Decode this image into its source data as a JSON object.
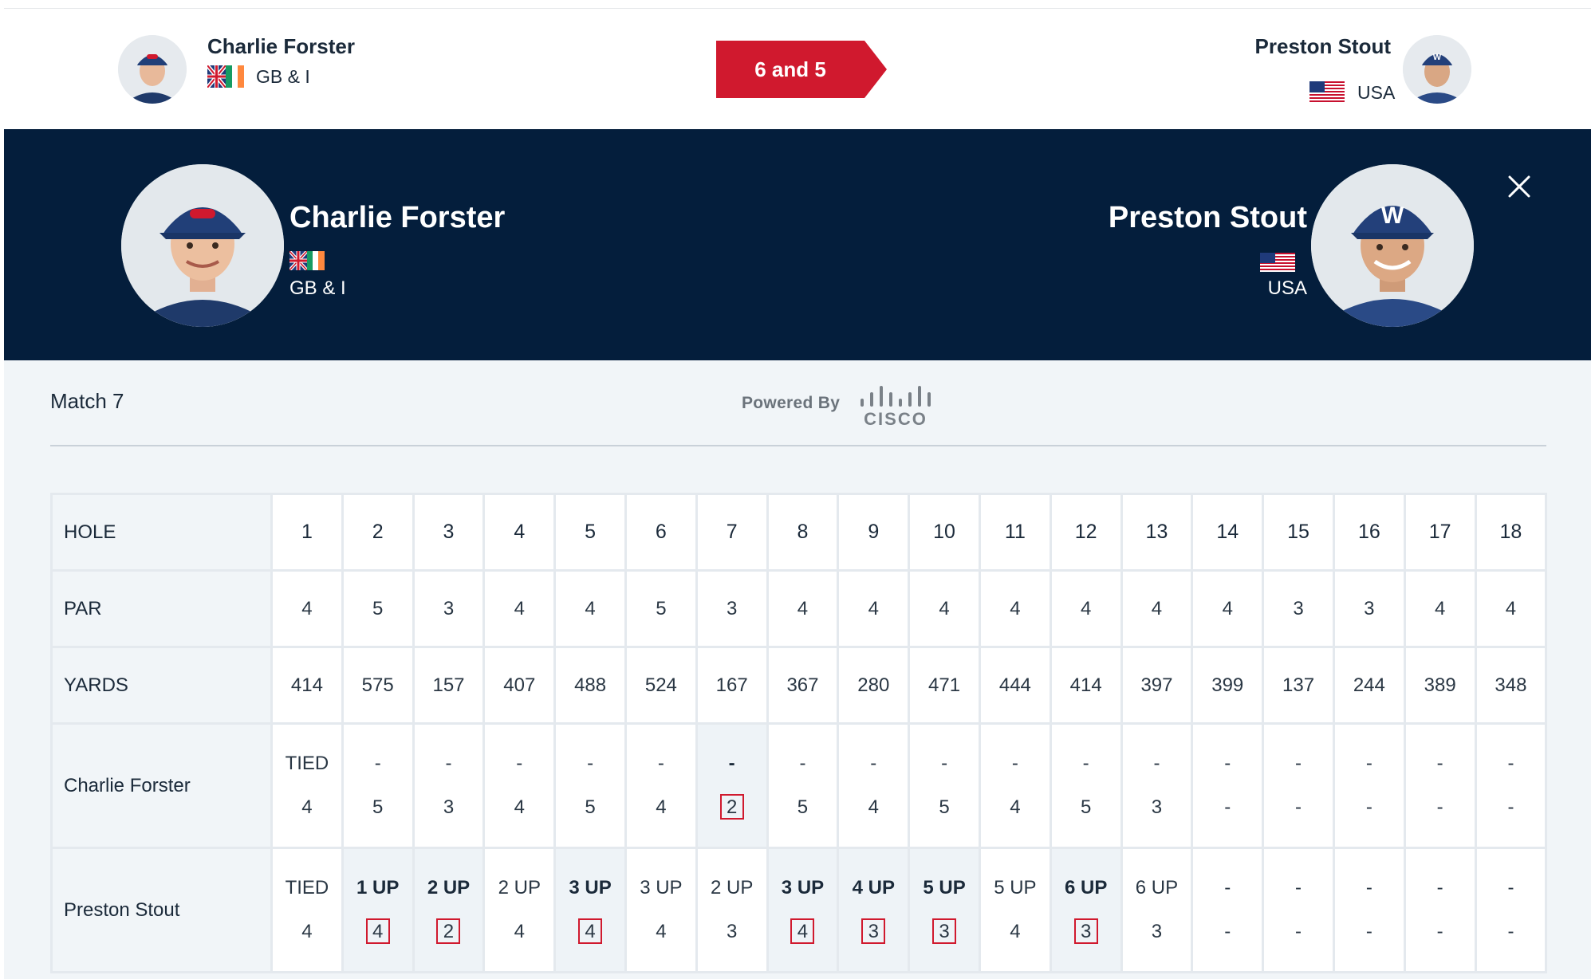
{
  "top": {
    "player1": {
      "name": "Charlie Forster",
      "country": "GB & I"
    },
    "player2": {
      "name": "Preston Stout",
      "country": "USA"
    },
    "result": "6 and 5"
  },
  "hero": {
    "player1": {
      "name": "Charlie Forster",
      "country": "GB & I"
    },
    "player2": {
      "name": "Preston Stout",
      "country": "USA"
    }
  },
  "match": {
    "label": "Match 7",
    "powered_by": "Powered By",
    "sponsor": "CISCO"
  },
  "colors": {
    "navy": "#041e3c",
    "accent_red": "#d0192e",
    "panel": "#f1f5f8"
  },
  "scorecard": {
    "row_labels": {
      "hole": "HOLE",
      "par": "PAR",
      "yards": "YARDS",
      "player1": "Charlie Forster",
      "player2": "Preston Stout"
    },
    "holes": [
      "1",
      "2",
      "3",
      "4",
      "5",
      "6",
      "7",
      "8",
      "9",
      "10",
      "11",
      "12",
      "13",
      "14",
      "15",
      "16",
      "17",
      "18"
    ],
    "par": [
      "4",
      "5",
      "3",
      "4",
      "4",
      "5",
      "3",
      "4",
      "4",
      "4",
      "4",
      "4",
      "4",
      "4",
      "3",
      "3",
      "4",
      "4"
    ],
    "yards": [
      "414",
      "575",
      "157",
      "407",
      "488",
      "524",
      "167",
      "367",
      "280",
      "471",
      "444",
      "414",
      "397",
      "399",
      "137",
      "244",
      "389",
      "348"
    ],
    "player1": [
      {
        "status": "TIED",
        "score": "4"
      },
      {
        "status": "-",
        "score": "5"
      },
      {
        "status": "-",
        "score": "3"
      },
      {
        "status": "-",
        "score": "4"
      },
      {
        "status": "-",
        "score": "5"
      },
      {
        "status": "-",
        "score": "4"
      },
      {
        "status": "-",
        "score": "2",
        "won": true,
        "bold": true
      },
      {
        "status": "-",
        "score": "5"
      },
      {
        "status": "-",
        "score": "4"
      },
      {
        "status": "-",
        "score": "5"
      },
      {
        "status": "-",
        "score": "4"
      },
      {
        "status": "-",
        "score": "5"
      },
      {
        "status": "-",
        "score": "3"
      },
      {
        "status": "-",
        "score": "-"
      },
      {
        "status": "-",
        "score": "-"
      },
      {
        "status": "-",
        "score": "-"
      },
      {
        "status": "-",
        "score": "-"
      },
      {
        "status": "-",
        "score": "-"
      }
    ],
    "player2": [
      {
        "status": "TIED",
        "score": "4"
      },
      {
        "status": "1 UP",
        "score": "4",
        "won": true,
        "bold": true
      },
      {
        "status": "2 UP",
        "score": "2",
        "won": true,
        "bold": true
      },
      {
        "status": "2 UP",
        "score": "4"
      },
      {
        "status": "3 UP",
        "score": "4",
        "won": true,
        "bold": true
      },
      {
        "status": "3 UP",
        "score": "4"
      },
      {
        "status": "2 UP",
        "score": "3"
      },
      {
        "status": "3 UP",
        "score": "4",
        "won": true,
        "bold": true
      },
      {
        "status": "4 UP",
        "score": "3",
        "won": true,
        "bold": true
      },
      {
        "status": "5 UP",
        "score": "3",
        "won": true,
        "bold": true
      },
      {
        "status": "5 UP",
        "score": "4"
      },
      {
        "status": "6 UP",
        "score": "3",
        "won": true,
        "bold": true
      },
      {
        "status": "6 UP",
        "score": "3"
      },
      {
        "status": "-",
        "score": "-"
      },
      {
        "status": "-",
        "score": "-"
      },
      {
        "status": "-",
        "score": "-"
      },
      {
        "status": "-",
        "score": "-"
      },
      {
        "status": "-",
        "score": "-"
      }
    ]
  }
}
